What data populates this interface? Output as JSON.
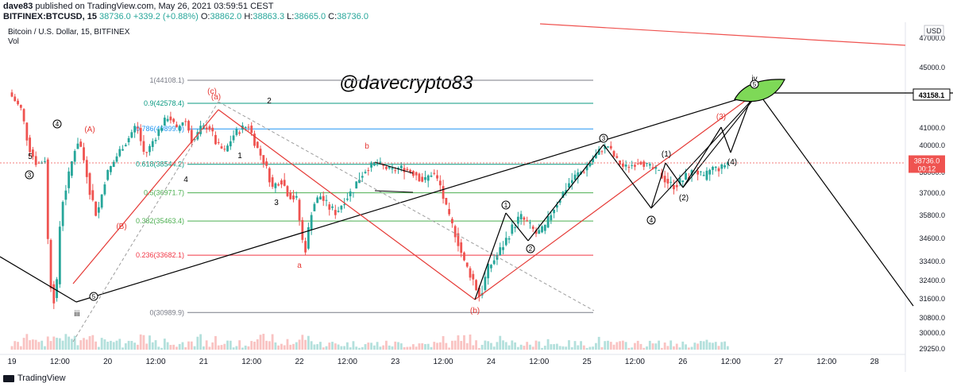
{
  "header": {
    "line1": {
      "user": "dave83",
      "text": " published on TradingView.com, May 26, 2021 03:59:51 CEST"
    },
    "line2": {
      "symbol": "BITFINEX:BTCUSD, 15",
      "price": "38736.0",
      "change": "+339.2 (+0.88%)",
      "o_label": "O:",
      "o_value": "38862.0",
      "h_label": "H:",
      "h_value": "38863.3",
      "l_label": "L:",
      "l_value": "38665.0",
      "c_label": "C:",
      "c_value": "38736.0"
    }
  },
  "footer": {
    "brand": "TradingView"
  },
  "colors": {
    "up": "#26a69a",
    "down": "#ef5350",
    "fib_gray": "#787b86",
    "fib_teal": "#089981",
    "fib_blue": "#2196f3",
    "fib_green": "#4caf50",
    "fib_red": "#f23645",
    "wave_red": "#e53935",
    "wave_black": "#000000",
    "leaf": "#7ed957"
  },
  "chart_data": {
    "type": "candlestick",
    "title": "Bitcoin / U.S. Dollar, 15, BITFINEX",
    "subtitle": "Vol",
    "watermark": "@davecrypto83",
    "currency_label": "USD",
    "x_ticks": [
      "19",
      "12:00",
      "20",
      "12:00",
      "21",
      "12:00",
      "22",
      "12:00",
      "23",
      "12:00",
      "24",
      "12:00",
      "25",
      "12:00",
      "26",
      "12:00",
      "27",
      "12:00",
      "28"
    ],
    "y_ticks": [
      29250,
      30000,
      30800,
      31600,
      32400,
      33400,
      34600,
      35800,
      37000,
      38000,
      40000,
      41000,
      45000,
      47000
    ],
    "y_tick_labels": [
      "29250.0",
      "30000.0",
      "30800.0",
      "31600.0",
      "32400.0",
      "33400.0",
      "34600.0",
      "35800.0",
      "37000.0",
      "38000.0",
      "40000.0",
      "41000.0",
      "45000.0",
      "47000.0"
    ],
    "last_price": {
      "value": 38736.0,
      "label": "38736.0",
      "countdown": "00:12"
    },
    "marked_level": {
      "value": 43158.1,
      "label": "43158.1"
    },
    "fib_levels": [
      {
        "ratio": "1",
        "value": 44108.1,
        "label": "1(44108.1)",
        "color_key": "fib_gray"
      },
      {
        "ratio": "0.9",
        "value": 42578.4,
        "label": "0.9(42578.4)",
        "color_key": "fib_teal"
      },
      {
        "ratio": "0.786",
        "value": 40899.0,
        "label": "0.786(40899.0)",
        "color_key": "fib_blue"
      },
      {
        "ratio": "0.618",
        "value": 38544.2,
        "label": "0.618(38544.2)",
        "color_key": "fib_teal"
      },
      {
        "ratio": "0.5",
        "value": 36971.7,
        "label": "0.5(36971.7)",
        "color_key": "fib_green"
      },
      {
        "ratio": "0.382",
        "value": 35463.4,
        "label": "0.382(35463.4)",
        "color_key": "fib_green"
      },
      {
        "ratio": "0.236",
        "value": 33682.1,
        "label": "0.236(33682.1)",
        "color_key": "fib_red"
      },
      {
        "ratio": "0",
        "value": 30989.9,
        "label": "0(30989.9)",
        "color_key": "fib_gray"
      }
    ],
    "wave_labels": [
      {
        "text": "(A)",
        "color_key": "wave_red"
      },
      {
        "text": "(B)",
        "color_key": "wave_red"
      },
      {
        "text": "(a)",
        "color_key": "wave_red"
      },
      {
        "text": "(b)",
        "color_key": "wave_red"
      },
      {
        "text": "(c)",
        "color_key": "wave_red"
      },
      {
        "text": "a",
        "color_key": "wave_red"
      },
      {
        "text": "b",
        "color_key": "wave_red"
      },
      {
        "text": "(1)",
        "color_key": "wave_black"
      },
      {
        "text": "(2)",
        "color_key": "wave_black"
      },
      {
        "text": "(3)",
        "color_key": "wave_red"
      },
      {
        "text": "(4)",
        "color_key": "wave_black"
      },
      {
        "text": "iii",
        "color_key": "wave_black"
      },
      {
        "text": "iv",
        "color_key": "wave_black"
      },
      {
        "text": "5",
        "color_key": "wave_black"
      },
      {
        "text": "4",
        "color_key": "wave_black"
      },
      {
        "text": "3",
        "color_key": "wave_black"
      },
      {
        "text": "2",
        "color_key": "wave_black"
      },
      {
        "text": "1",
        "color_key": "wave_black"
      }
    ],
    "circled_labels": [
      "3",
      "4",
      "5",
      "1",
      "2",
      "3",
      "4",
      "5"
    ]
  }
}
